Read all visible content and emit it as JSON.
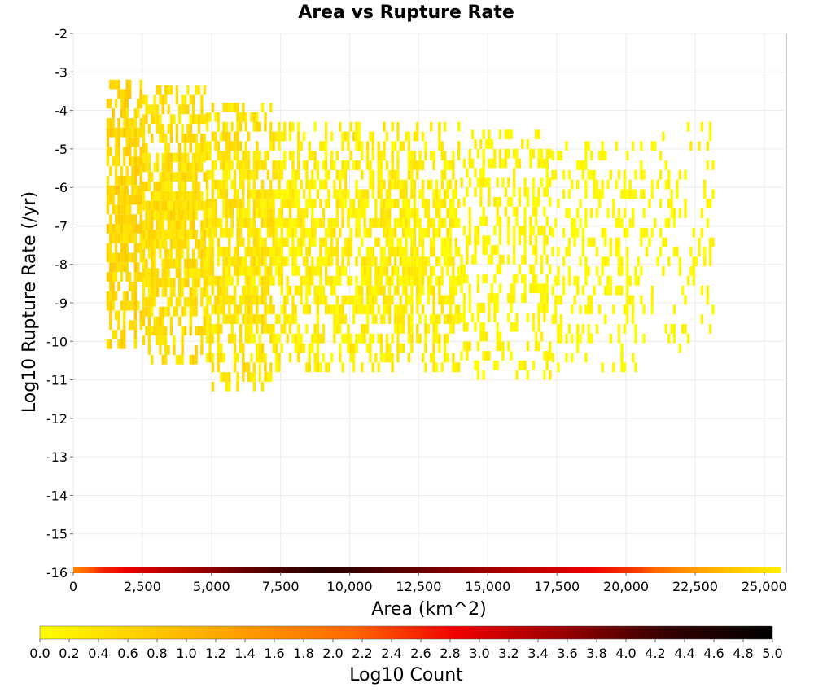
{
  "chart_data": {
    "type": "heatmap",
    "title": "Area vs Rupture Rate",
    "xlabel": "Area (km^2)",
    "ylabel": "Log10 Rupture Rate (/yr)",
    "xlim": [
      0,
      25800
    ],
    "ylim": [
      -16,
      -2
    ],
    "x_ticks": [
      "0",
      "2,500",
      "5,000",
      "7,500",
      "10,000",
      "12,500",
      "15,000",
      "17,500",
      "20,000",
      "22,500",
      "25,000"
    ],
    "x_tick_values": [
      0,
      2500,
      5000,
      7500,
      10000,
      12500,
      15000,
      17500,
      20000,
      22500,
      25000
    ],
    "y_ticks": [
      "-2",
      "-3",
      "-4",
      "-5",
      "-6",
      "-7",
      "-8",
      "-9",
      "-10",
      "-11",
      "-12",
      "-13",
      "-14",
      "-15",
      "-16"
    ],
    "y_tick_values": [
      -2,
      -3,
      -4,
      -5,
      -6,
      -7,
      -8,
      -9,
      -10,
      -11,
      -12,
      -13,
      -14,
      -15,
      -16
    ],
    "grid": true,
    "colorbar": {
      "label": "Log10 Count",
      "range": [
        0,
        5
      ],
      "ticks": [
        "0.0",
        "0.2",
        "0.4",
        "0.6",
        "0.8",
        "1.0",
        "1.2",
        "1.4",
        "1.6",
        "1.8",
        "2.0",
        "2.2",
        "2.4",
        "2.6",
        "2.8",
        "3.0",
        "3.2",
        "3.4",
        "3.6",
        "3.8",
        "4.0",
        "4.2",
        "4.4",
        "4.6",
        "4.8",
        "5.0"
      ],
      "colors": [
        "#ffff00",
        "#ffcc00",
        "#ff9900",
        "#ff6600",
        "#ee0000",
        "#990000",
        "#330000",
        "#000000"
      ]
    },
    "bin_size": {
      "x": 100,
      "y": 0.25
    },
    "regions": [
      {
        "x_range": [
          1200,
          2500
        ],
        "y_range": [
          -10.2,
          -3.2
        ],
        "log10_count": [
          0.3,
          0.8
        ]
      },
      {
        "x_range": [
          2500,
          4800
        ],
        "y_range": [
          -10.6,
          -3.5
        ],
        "log10_count": [
          0.2,
          0.7
        ]
      },
      {
        "x_range": [
          4800,
          7300
        ],
        "y_range": [
          -11.3,
          -3.9
        ],
        "log10_count": [
          0.1,
          0.6
        ]
      },
      {
        "x_range": [
          7300,
          14000
        ],
        "y_range": [
          -10.8,
          -4.4
        ],
        "log10_count": [
          0.0,
          0.45
        ]
      },
      {
        "x_range": [
          14000,
          17300
        ],
        "y_range": [
          -11.0,
          -4.5
        ],
        "log10_count": [
          0.0,
          0.3
        ]
      },
      {
        "x_range": [
          17300,
          20700
        ],
        "y_range": [
          -10.8,
          -5.0
        ],
        "log10_count": [
          0.0,
          0.2
        ]
      },
      {
        "x_range": [
          20700,
          23200
        ],
        "y_range": [
          -10.3,
          -4.5
        ],
        "log10_count": [
          0.0,
          0.25
        ]
      }
    ],
    "floor_row": {
      "y": -16,
      "x_range": [
        0,
        25600
      ],
      "log10_count_profile": [
        {
          "x": 0,
          "v": 1.8
        },
        {
          "x": 1000,
          "v": 2.6
        },
        {
          "x": 3000,
          "v": 3.2
        },
        {
          "x": 6000,
          "v": 3.9
        },
        {
          "x": 9000,
          "v": 4.4
        },
        {
          "x": 12000,
          "v": 4.0
        },
        {
          "x": 15000,
          "v": 3.5
        },
        {
          "x": 18000,
          "v": 3.0
        },
        {
          "x": 20500,
          "v": 2.4
        },
        {
          "x": 22000,
          "v": 1.6
        },
        {
          "x": 23500,
          "v": 0.9
        },
        {
          "x": 25600,
          "v": 0.2
        }
      ]
    }
  }
}
